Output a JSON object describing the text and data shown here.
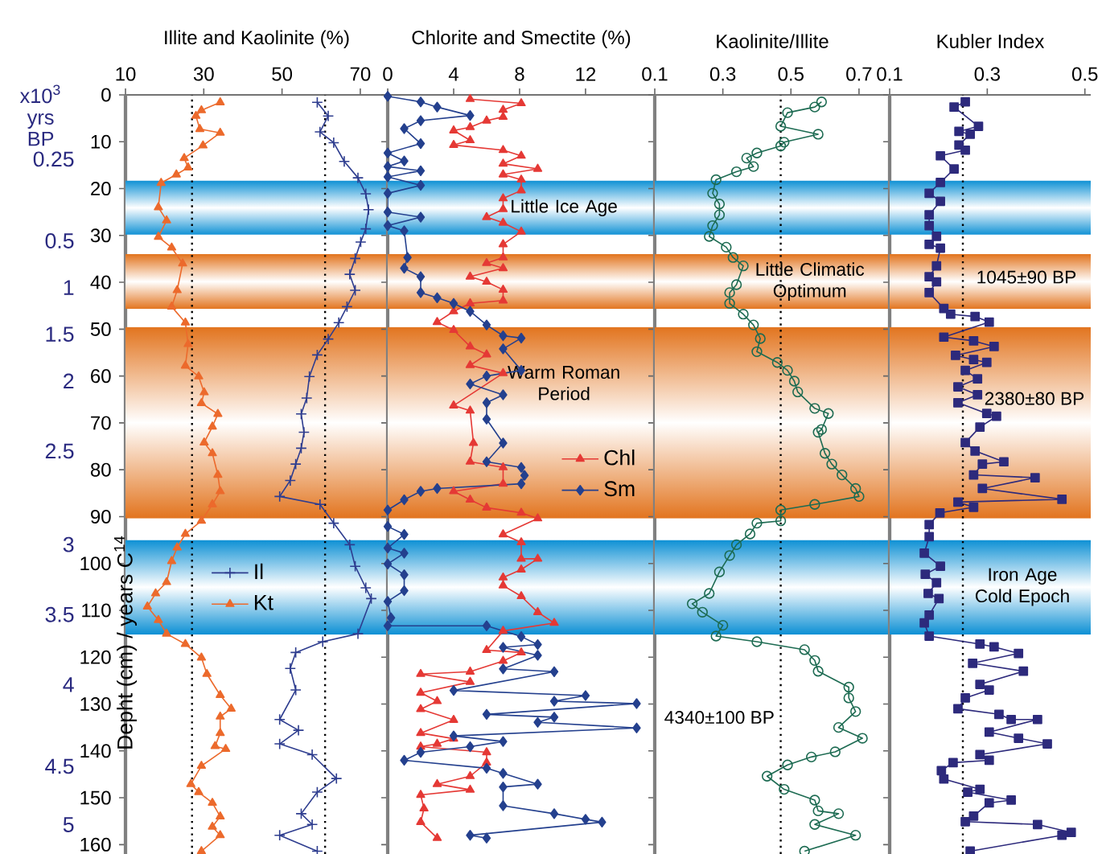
{
  "chart_data": [
    {
      "type": "line",
      "xlabel": "Illite and Kaolinite (%)",
      "ylabel": "Depht (cm) / years C$^{14}$",
      "y2label": "x10$^{3}$ yrs BP",
      "xlim": [
        10,
        77
      ],
      "xticks": [
        10,
        30,
        50,
        70
      ],
      "ylim": [
        162,
        0
      ],
      "yticks": [
        0,
        10,
        20,
        30,
        40,
        50,
        60,
        70,
        80,
        90,
        100,
        110,
        120,
        130,
        140,
        150,
        160
      ],
      "y2_categories": [
        null,
        null,
        null,
        null,
        null,
        "0.25",
        null,
        null,
        null,
        null,
        null,
        null,
        "0.5",
        null,
        null,
        null,
        "1",
        null,
        null,
        null,
        "1.5",
        null,
        null,
        null,
        "2",
        null,
        null,
        null,
        null,
        null,
        "2.5",
        null,
        null,
        null,
        null,
        null,
        null,
        null,
        "3",
        null,
        null,
        null,
        null,
        null,
        "3.5",
        null,
        null,
        null,
        null,
        null,
        "4",
        null,
        null,
        null,
        null,
        null,
        null,
        "4.5",
        null,
        null,
        null,
        null,
        "5",
        null,
        null
      ],
      "legend": "left",
      "ref_lines": [
        {
          "axis": "x",
          "value": 27,
          "line_style": "dotted"
        },
        {
          "axis": "x",
          "value": 61,
          "line_style": "dotted"
        }
      ],
      "bands": [
        {
          "axis": "y",
          "from": 18.2,
          "to": 30,
          "color": "#0b8fd4"
        },
        {
          "axis": "y",
          "from": 34,
          "to": 45.7,
          "color": "#e2741e"
        },
        {
          "axis": "y",
          "from": 49.5,
          "to": 90.4,
          "color": "#e2741e"
        },
        {
          "axis": "y",
          "from": 94.9,
          "to": 115.2,
          "color": "#0b8fd4"
        }
      ],
      "series": [
        {
          "name": "Il",
          "color": "#2e3d8f",
          "marker": "cross",
          "x": [
            59,
            61.8,
            59.7,
            63.2,
            65.9,
            69.4,
            71.4,
            72.1,
            71.4,
            70.1,
            68.7,
            67.3,
            68.7,
            66.6,
            64.5,
            61.8,
            59,
            57,
            56.3,
            54.9,
            55.6,
            54.9,
            53.5,
            52.1,
            49.4,
            59.7,
            63.2,
            67.3,
            68.7,
            71.4,
            72.8,
            69.4,
            60.4,
            53.5,
            52.1,
            53.5,
            49.4,
            54.2,
            49.4,
            57.7,
            63.9,
            59,
            54.9,
            57.7,
            49.4,
            59
          ],
          "values": [
            1.6,
            4.5,
            7.9,
            10.2,
            14.2,
            17.7,
            21.1,
            24.5,
            28.6,
            31.4,
            34.9,
            38.3,
            41.7,
            45.2,
            48.6,
            52.1,
            55.5,
            60.1,
            64.7,
            68.1,
            72,
            75.4,
            78.8,
            82.3,
            85.7,
            87.4,
            91.4,
            96,
            100.6,
            105.2,
            107.5,
            115,
            116.7,
            119,
            122.4,
            127,
            133.3,
            135.6,
            138.5,
            140.8,
            145.9,
            148.8,
            153.4,
            155.7,
            158,
            161.4
          ]
        },
        {
          "name": "Kt",
          "color": "#ec6a2c",
          "marker": "triangle",
          "x": [
            34.2,
            29.4,
            28,
            29,
            34.2,
            29.8,
            25,
            26,
            23,
            19.1,
            18.4,
            20.5,
            18.4,
            21.8,
            24.6,
            23.2,
            21.8,
            25.3,
            26,
            25.3,
            28.7,
            30.1,
            29.4,
            33.6,
            32.2,
            30.1,
            32.2,
            33.6,
            34.2,
            32.2,
            29.4,
            25.3,
            23.2,
            21.8,
            20.5,
            17.7,
            15.6,
            18.4,
            20.5,
            25.3,
            29.4,
            30.8,
            34.2,
            37,
            34.2,
            34.2,
            32.9,
            35.6,
            29.4,
            26.7,
            28.7,
            32.2,
            34.2,
            32.2,
            34.2,
            29.4
          ],
          "values": [
            1.6,
            3.3,
            4.5,
            7.3,
            8.1,
            10.8,
            13.5,
            15.5,
            17,
            18.8,
            24,
            26.8,
            30.3,
            32.6,
            36,
            41.7,
            45.2,
            48.6,
            53.2,
            57.8,
            60.1,
            63.5,
            65.8,
            68.1,
            70.8,
            74.2,
            76.5,
            81.1,
            84.6,
            87.4,
            90.9,
            93.7,
            96.6,
            99.5,
            104,
            106.4,
            109.2,
            112.1,
            115,
            117.2,
            120.1,
            123.6,
            128.1,
            131,
            132.7,
            136.2,
            139,
            139.6,
            143.2,
            147.1,
            148.8,
            151.1,
            154,
            156.2,
            158,
            161.4
          ]
        }
      ]
    },
    {
      "type": "line",
      "xlabel": "Chlorite and Smectite (%)",
      "xlim": [
        0,
        16.2
      ],
      "xticks": [
        0,
        4,
        8,
        12
      ],
      "ylim": [
        162,
        0
      ],
      "yticks": [
        0,
        10,
        20,
        30,
        40,
        50,
        60,
        70,
        80,
        90,
        100,
        110,
        120,
        130,
        140,
        150,
        160
      ],
      "tick_labels": "x",
      "legend": "right",
      "bands": [
        {
          "axis": "y",
          "from": 18.2,
          "to": 30,
          "color": "#0b8fd4",
          "label": "Little Ice Age"
        },
        {
          "axis": "y",
          "from": 34,
          "to": 45.7,
          "color": "#e2741e"
        },
        {
          "axis": "y",
          "from": 49.5,
          "to": 90.4,
          "color": "#e2741e",
          "label": "Warm Roman Period"
        },
        {
          "axis": "y",
          "from": 94.9,
          "to": 115.2,
          "color": "#0b8fd4"
        }
      ],
      "series": [
        {
          "name": "Chl",
          "color": "#e53935",
          "marker": "triangle",
          "x": [
            5,
            8.1,
            7,
            7,
            6,
            5,
            4,
            5,
            4,
            7,
            8.1,
            7,
            9.1,
            7,
            8.1,
            8.1,
            7,
            7,
            6,
            7,
            8.1,
            7,
            7,
            6,
            7,
            5,
            6,
            7,
            7,
            5,
            4,
            3,
            4,
            5,
            6,
            5,
            7,
            4,
            5,
            5.2,
            5,
            7,
            7,
            4,
            5,
            6,
            8.1,
            9.1,
            7,
            8.1,
            8.1,
            9.1,
            8.1,
            7,
            7,
            8.1,
            9.1,
            10.1,
            7,
            6,
            8.1,
            7,
            5,
            2,
            5,
            2,
            3,
            2,
            4,
            2,
            4,
            3,
            2,
            6,
            6,
            5,
            3,
            5,
            2,
            2.2,
            2,
            3
          ],
          "values": [
            0.9,
            1.8,
            3.2,
            4.7,
            5.5,
            6.9,
            7.6,
            9.7,
            10.7,
            11.8,
            13,
            14.7,
            15.8,
            17,
            18.1,
            20.4,
            22.1,
            24.4,
            26.1,
            27.3,
            29.2,
            31.9,
            34.7,
            35.9,
            37,
            38.8,
            39.9,
            41.6,
            43.9,
            44.5,
            46.2,
            48.5,
            50.2,
            53.7,
            55.4,
            57.7,
            59.4,
            66.3,
            67.4,
            74.3,
            78.3,
            79.5,
            83,
            84.6,
            86.4,
            88.1,
            89.2,
            90.4,
            93.8,
            95.5,
            99,
            99,
            101.3,
            103,
            104.7,
            107,
            110.4,
            112.7,
            114.4,
            118.5,
            119,
            120.8,
            123.1,
            123.6,
            125.3,
            127.6,
            129.4,
            131.1,
            133.4,
            136.2,
            137.4,
            138.5,
            139.1,
            140.3,
            142.5,
            145.4,
            147.1,
            148.3,
            149.4,
            152.3,
            155.2,
            158.6
          ]
        },
        {
          "name": "Sm",
          "color": "#24408e",
          "marker": "diamond",
          "x": [
            0,
            2,
            3,
            5,
            2,
            1,
            2,
            0,
            1,
            0,
            2,
            0,
            2,
            0,
            0,
            2,
            0,
            1,
            1.2,
            1,
            2,
            2,
            3,
            4,
            5,
            6,
            7,
            8.1,
            7,
            8.1,
            6,
            5,
            7,
            6,
            6,
            7,
            6,
            8.1,
            8.3,
            8.1,
            3,
            2,
            1,
            0,
            0,
            1,
            0,
            1,
            0,
            1,
            1,
            0,
            0.2,
            0,
            6,
            8.1,
            9.1,
            7,
            9.1,
            7,
            10.1,
            4,
            12,
            10.1,
            15.1,
            6,
            10.1,
            9.1,
            15.1,
            4,
            7,
            5,
            2,
            1,
            6,
            7,
            9.1,
            7,
            7,
            10.1,
            12,
            13,
            5,
            6
          ],
          "values": [
            0.3,
            1.5,
            2.6,
            4.4,
            5.5,
            7.2,
            10.4,
            12.4,
            14.1,
            15.3,
            16.2,
            17.5,
            19.3,
            21,
            25,
            26.1,
            27.9,
            29,
            34.7,
            37,
            38.8,
            42.2,
            43.3,
            44.5,
            46.2,
            49.1,
            51.4,
            51.9,
            54.2,
            58.8,
            60,
            61.7,
            64,
            65.7,
            69.2,
            74.3,
            78.3,
            79.5,
            81.2,
            83,
            84,
            84.6,
            86.4,
            88.6,
            92.1,
            93.8,
            96.7,
            97.8,
            100.1,
            102.4,
            105.8,
            108.1,
            111.6,
            113.3,
            113.3,
            115.6,
            117.3,
            117.9,
            119.6,
            122.5,
            123.1,
            127.1,
            128.2,
            129.4,
            129.9,
            132.2,
            132.8,
            133.9,
            135.1,
            136.8,
            138,
            139.1,
            140.3,
            142,
            143.7,
            144.8,
            147.1,
            147.7,
            151.7,
            153.4,
            154.6,
            155.2,
            158,
            158.6
          ]
        }
      ]
    },
    {
      "type": "line",
      "xlabel": "Kaolinite/Illite",
      "xlim": [
        0.1,
        0.79
      ],
      "xticks": [
        0.1,
        0.3,
        0.5,
        0.7
      ],
      "ylim": [
        162,
        0
      ],
      "yticks": [
        0,
        10,
        20,
        30,
        40,
        50,
        60,
        70,
        80,
        90,
        100,
        110,
        120,
        130,
        140,
        150,
        160
      ],
      "tick_labels": "x",
      "ref_lines": [
        {
          "axis": "x",
          "value": 0.47,
          "line_style": "dotted"
        }
      ],
      "bands": [
        {
          "axis": "y",
          "from": 18.2,
          "to": 30,
          "color": "#0b8fd4"
        },
        {
          "axis": "y",
          "from": 34,
          "to": 45.7,
          "color": "#e2741e",
          "label": "Little Climatic Optimum"
        },
        {
          "axis": "y",
          "from": 49.5,
          "to": 90.4,
          "color": "#e2741e"
        },
        {
          "axis": "y",
          "from": 94.9,
          "to": 115.2,
          "color": "#0b8fd4"
        }
      ],
      "annotations": [
        "4340±100 BP"
      ],
      "series": [
        {
          "color": "#1d6b52",
          "marker": "circle",
          "x": [
            0.59,
            0.57,
            0.49,
            0.47,
            0.58,
            0.48,
            0.47,
            0.4,
            0.37,
            0.39,
            0.34,
            0.28,
            0.27,
            0.29,
            0.29,
            0.27,
            0.26,
            0.31,
            0.33,
            0.36,
            0.34,
            0.32,
            0.32,
            0.36,
            0.39,
            0.41,
            0.4,
            0.46,
            0.49,
            0.51,
            0.52,
            0.57,
            0.61,
            0.59,
            0.58,
            0.6,
            0.62,
            0.65,
            0.69,
            0.7,
            0.57,
            0.47,
            0.47,
            0.4,
            0.38,
            0.34,
            0.32,
            0.29,
            0.26,
            0.21,
            0.24,
            0.3,
            0.28,
            0.4,
            0.54,
            0.57,
            0.58,
            0.67,
            0.67,
            0.69,
            0.64,
            0.71,
            0.63,
            0.56,
            0.49,
            0.43,
            0.48,
            0.57,
            0.58,
            0.64,
            0.57,
            0.69,
            0.54
          ],
          "values": [
            1.5,
            2.6,
            3.8,
            6.7,
            8.4,
            10.1,
            10.9,
            12.4,
            13.5,
            15.3,
            16.4,
            18.1,
            21,
            23.3,
            25.6,
            27.9,
            30.2,
            32.5,
            34.7,
            36.5,
            40.5,
            42.2,
            44.5,
            46.8,
            49.1,
            52,
            54.8,
            57.1,
            58.8,
            61.1,
            63.4,
            66.9,
            68,
            71.4,
            72,
            76.5,
            78.8,
            81.1,
            84,
            85.7,
            87.4,
            88.6,
            90.9,
            91.4,
            93.7,
            96,
            98.3,
            101.8,
            106.4,
            108.6,
            110.4,
            113.2,
            115.5,
            116.7,
            118.4,
            120.7,
            123,
            126.4,
            128.7,
            131.6,
            135,
            137.3,
            140.2,
            141.3,
            143,
            145.4,
            148.2,
            150.5,
            152.8,
            153.4,
            155.7,
            158,
            161.4
          ]
        }
      ]
    },
    {
      "type": "line",
      "xlabel": "Kubler Index",
      "xlim": [
        0.1,
        0.512
      ],
      "xticks": [
        0.1,
        0.3,
        0.5
      ],
      "ylim": [
        162,
        0
      ],
      "yticks": [
        0,
        10,
        20,
        30,
        40,
        50,
        60,
        70,
        80,
        90,
        100,
        110,
        120,
        130,
        140,
        150,
        160
      ],
      "tick_labels": "x",
      "ref_lines": [
        {
          "axis": "x",
          "value": 0.25,
          "line_style": "dotted"
        }
      ],
      "bands": [
        {
          "axis": "y",
          "from": 18.2,
          "to": 30,
          "color": "#0b8fd4"
        },
        {
          "axis": "y",
          "from": 34,
          "to": 45.7,
          "color": "#e2741e"
        },
        {
          "axis": "y",
          "from": 49.5,
          "to": 90.4,
          "color": "#e2741e"
        },
        {
          "axis": "y",
          "from": 94.9,
          "to": 115.2,
          "color": "#0b8fd4",
          "label": "Iron Age Cold Epoch"
        }
      ],
      "annotations": [
        "1045±90 BP",
        "2380±80 BP"
      ],
      "series": [
        {
          "color": "#2d2a7c",
          "marker": "square",
          "x": [
            0.255,
            0.232,
            0.282,
            0.242,
            0.265,
            0.242,
            0.255,
            0.204,
            0.232,
            0.204,
            0.181,
            0.204,
            0.181,
            0.181,
            0.196,
            0.181,
            0.204,
            0.196,
            0.181,
            0.196,
            0.181,
            0.211,
            0.225,
            0.275,
            0.304,
            0.211,
            0.272,
            0.314,
            0.235,
            0.272,
            0.299,
            0.255,
            0.28,
            0.24,
            0.28,
            0.24,
            0.299,
            0.319,
            0.285,
            0.255,
            0.275,
            0.334,
            0.29,
            0.272,
            0.398,
            0.29,
            0.453,
            0.24,
            0.272,
            0.203,
            0.181,
            0.181,
            0.171,
            0.204,
            0.173,
            0.196,
            0.179,
            0.201,
            0.181,
            0.171,
            0.181,
            0.285,
            0.314,
            0.364,
            0.27,
            0.374,
            0.285,
            0.304,
            0.255,
            0.24,
            0.324,
            0.349,
            0.403,
            0.304,
            0.364,
            0.423,
            0.285,
            0.304,
            0.23,
            0.206,
            0.211,
            0.285,
            0.26,
            0.349,
            0.304,
            0.272,
            0.255,
            0.403,
            0.472,
            0.453,
            0.265
          ],
          "values": [
            1.5,
            2.6,
            6.7,
            7.8,
            8.4,
            10.7,
            11.8,
            13,
            15.8,
            18.7,
            21,
            22.7,
            25.6,
            27.9,
            30.2,
            31.9,
            32.7,
            36.5,
            38.8,
            39.9,
            42.2,
            45.6,
            46.8,
            47.3,
            48.5,
            51.7,
            52.5,
            53.7,
            55.6,
            56.5,
            57.1,
            58.8,
            60.6,
            62.3,
            64,
            65.7,
            68,
            68.6,
            70.9,
            74.2,
            76,
            78.3,
            78.8,
            81.1,
            81.7,
            84,
            86.3,
            86.9,
            88,
            89.2,
            91.7,
            94.3,
            97.8,
            100.6,
            102.3,
            104.1,
            106.4,
            107.5,
            111,
            112.7,
            115.5,
            117.2,
            117.8,
            119.2,
            121.3,
            123,
            125.8,
            127,
            128.7,
            131,
            132.2,
            133.3,
            133.3,
            136,
            137.3,
            138.5,
            140.8,
            142,
            142.5,
            144.2,
            146,
            148.2,
            148.8,
            150.5,
            151.1,
            153.9,
            155.1,
            155.7,
            157.4,
            158,
            161.4
          ]
        }
      ]
    }
  ]
}
